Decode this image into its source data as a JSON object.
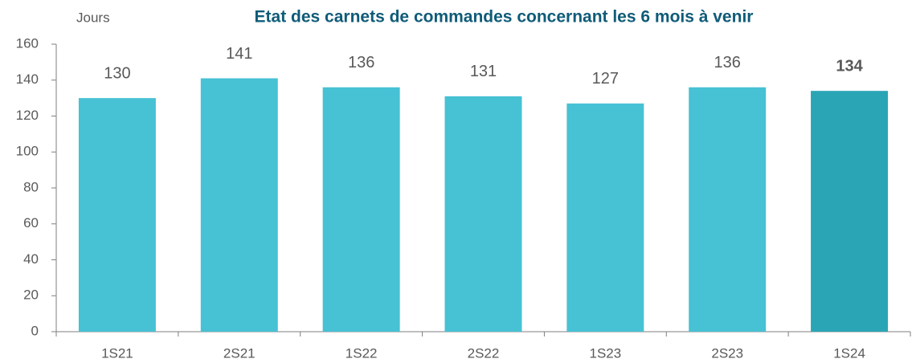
{
  "chart_data": {
    "type": "bar",
    "title": "Etat des carnets de commandes concernant les 6 mois à venir",
    "y_label": "Jours",
    "categories": [
      "1S21",
      "2S21",
      "1S22",
      "2S22",
      "1S23",
      "2S23",
      "1S24"
    ],
    "values": [
      130,
      141,
      136,
      131,
      127,
      136,
      134
    ],
    "colors": [
      "#47c1d4",
      "#47c1d4",
      "#47c1d4",
      "#47c1d4",
      "#47c1d4",
      "#47c1d4",
      "#2aa5b5"
    ],
    "value_label_bold": [
      false,
      false,
      false,
      false,
      false,
      false,
      true
    ],
    "ylim": [
      0,
      160
    ],
    "yticks": [
      0,
      20,
      40,
      60,
      80,
      100,
      120,
      140,
      160
    ],
    "grid": false
  }
}
